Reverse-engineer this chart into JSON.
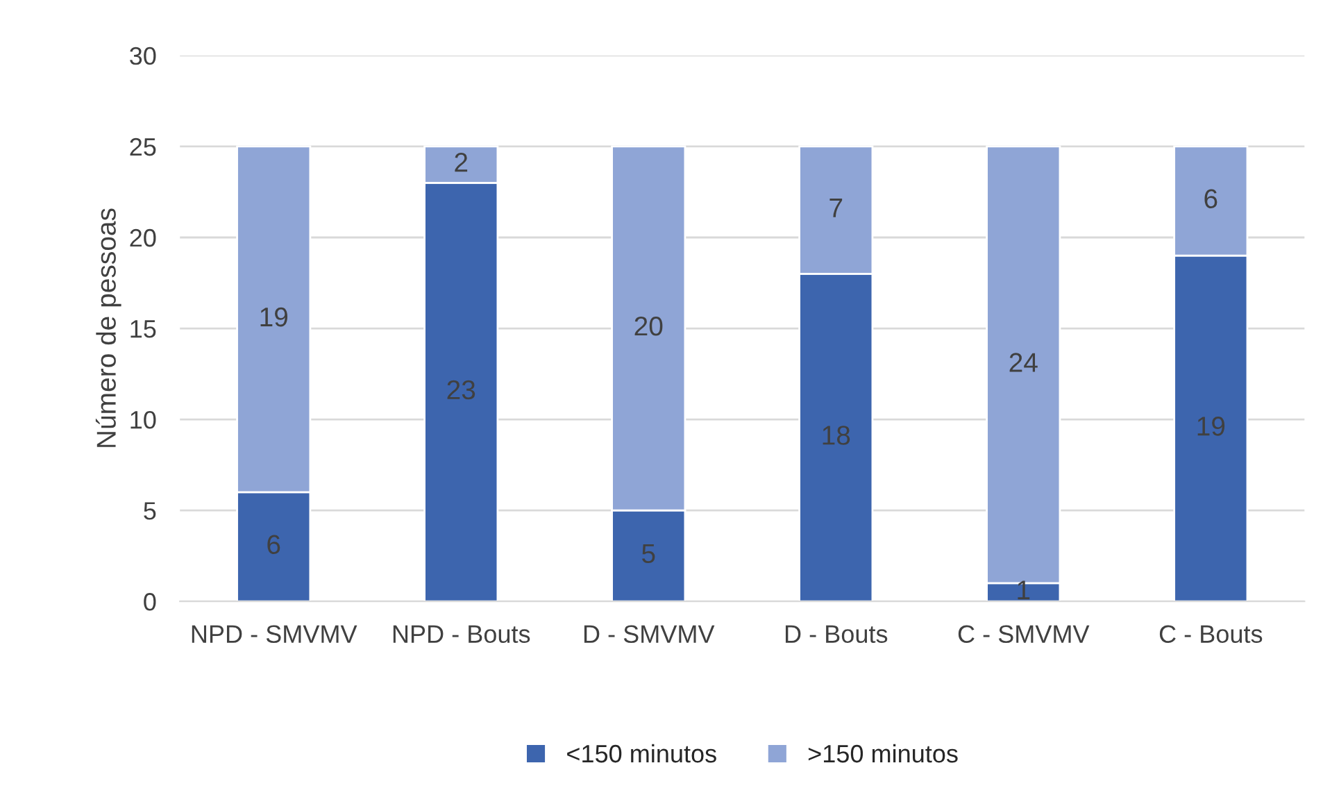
{
  "chart_data": {
    "type": "bar",
    "stacked": true,
    "ylabel": "Número de pessoas",
    "categories": [
      "NPD - SMVMV",
      "NPD - Bouts",
      "D - SMVMV",
      "D - Bouts",
      "C - SMVMV",
      "C - Bouts"
    ],
    "series": [
      {
        "name": "<150 minutos",
        "color": "#3d65ae",
        "values": [
          6,
          23,
          5,
          18,
          1,
          19
        ]
      },
      {
        "name": ">150 minutos",
        "color": "#8fa5d6",
        "values": [
          19,
          2,
          20,
          7,
          24,
          6
        ]
      }
    ],
    "ylim": [
      0,
      30
    ],
    "yticks": [
      0,
      5,
      10,
      15,
      20,
      25,
      30
    ],
    "grid": "y",
    "legend": "bottom",
    "data_labels": true
  }
}
